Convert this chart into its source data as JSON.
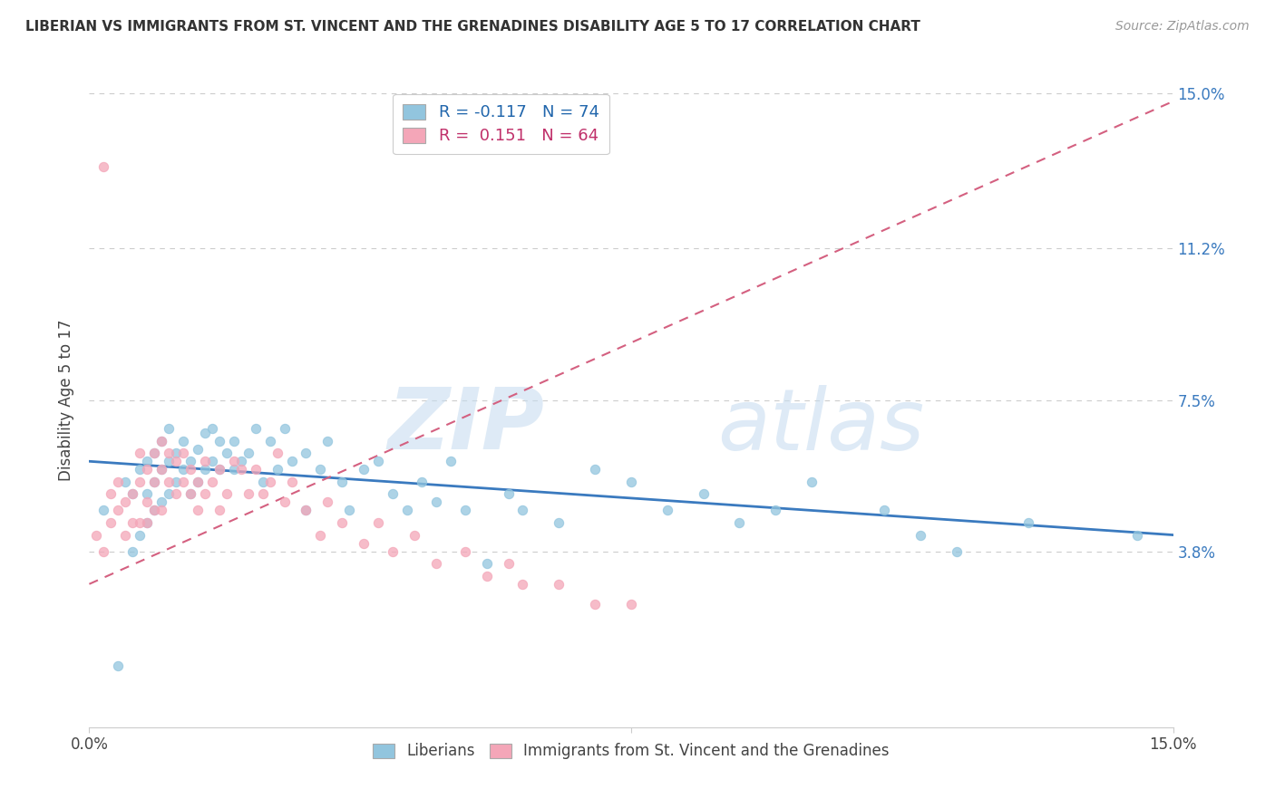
{
  "title": "LIBERIAN VS IMMIGRANTS FROM ST. VINCENT AND THE GRENADINES DISABILITY AGE 5 TO 17 CORRELATION CHART",
  "source": "Source: ZipAtlas.com",
  "ylabel": "Disability Age 5 to 17",
  "xlim": [
    0.0,
    0.15
  ],
  "ylim": [
    -0.005,
    0.155
  ],
  "yticks": [
    0.038,
    0.075,
    0.112,
    0.15
  ],
  "ytick_labels": [
    "3.8%",
    "7.5%",
    "11.2%",
    "15.0%"
  ],
  "xticks": [
    0.0,
    0.075,
    0.15
  ],
  "xtick_labels": [
    "0.0%",
    "",
    "15.0%"
  ],
  "legend1_R": "-0.117",
  "legend1_N": "74",
  "legend2_R": "0.151",
  "legend2_N": "64",
  "blue_color": "#92c5de",
  "pink_color": "#f4a6b8",
  "trend_blue": "#3a7abf",
  "trend_pink": "#d46080",
  "blue_trend_start_y": 0.06,
  "blue_trend_end_y": 0.042,
  "pink_trend_start_y": 0.03,
  "pink_trend_end_y": 0.148,
  "blue_x": [
    0.002,
    0.004,
    0.005,
    0.006,
    0.006,
    0.007,
    0.007,
    0.008,
    0.008,
    0.008,
    0.009,
    0.009,
    0.009,
    0.01,
    0.01,
    0.01,
    0.011,
    0.011,
    0.011,
    0.012,
    0.012,
    0.013,
    0.013,
    0.014,
    0.014,
    0.015,
    0.015,
    0.016,
    0.016,
    0.017,
    0.017,
    0.018,
    0.018,
    0.019,
    0.02,
    0.02,
    0.021,
    0.022,
    0.023,
    0.024,
    0.025,
    0.026,
    0.027,
    0.028,
    0.03,
    0.03,
    0.032,
    0.033,
    0.035,
    0.036,
    0.038,
    0.04,
    0.042,
    0.044,
    0.046,
    0.048,
    0.05,
    0.052,
    0.055,
    0.058,
    0.06,
    0.065,
    0.07,
    0.075,
    0.08,
    0.085,
    0.09,
    0.095,
    0.1,
    0.11,
    0.115,
    0.12,
    0.13,
    0.145
  ],
  "blue_y": [
    0.048,
    0.01,
    0.055,
    0.038,
    0.052,
    0.042,
    0.058,
    0.045,
    0.052,
    0.06,
    0.048,
    0.055,
    0.062,
    0.05,
    0.058,
    0.065,
    0.052,
    0.06,
    0.068,
    0.055,
    0.062,
    0.058,
    0.065,
    0.052,
    0.06,
    0.055,
    0.063,
    0.058,
    0.067,
    0.06,
    0.068,
    0.058,
    0.065,
    0.062,
    0.058,
    0.065,
    0.06,
    0.062,
    0.068,
    0.055,
    0.065,
    0.058,
    0.068,
    0.06,
    0.062,
    0.048,
    0.058,
    0.065,
    0.055,
    0.048,
    0.058,
    0.06,
    0.052,
    0.048,
    0.055,
    0.05,
    0.06,
    0.048,
    0.035,
    0.052,
    0.048,
    0.045,
    0.058,
    0.055,
    0.048,
    0.052,
    0.045,
    0.048,
    0.055,
    0.048,
    0.042,
    0.038,
    0.045,
    0.042
  ],
  "pink_x": [
    0.001,
    0.002,
    0.003,
    0.003,
    0.004,
    0.004,
    0.005,
    0.005,
    0.006,
    0.006,
    0.007,
    0.007,
    0.007,
    0.008,
    0.008,
    0.008,
    0.009,
    0.009,
    0.009,
    0.01,
    0.01,
    0.01,
    0.011,
    0.011,
    0.012,
    0.012,
    0.013,
    0.013,
    0.014,
    0.014,
    0.015,
    0.015,
    0.016,
    0.016,
    0.017,
    0.018,
    0.018,
    0.019,
    0.02,
    0.021,
    0.022,
    0.023,
    0.024,
    0.025,
    0.026,
    0.027,
    0.028,
    0.03,
    0.032,
    0.033,
    0.035,
    0.038,
    0.04,
    0.042,
    0.045,
    0.048,
    0.052,
    0.055,
    0.058,
    0.06,
    0.065,
    0.07,
    0.075,
    0.002
  ],
  "pink_y": [
    0.042,
    0.038,
    0.052,
    0.045,
    0.048,
    0.055,
    0.042,
    0.05,
    0.045,
    0.052,
    0.055,
    0.045,
    0.062,
    0.05,
    0.058,
    0.045,
    0.055,
    0.062,
    0.048,
    0.058,
    0.065,
    0.048,
    0.055,
    0.062,
    0.052,
    0.06,
    0.055,
    0.062,
    0.052,
    0.058,
    0.048,
    0.055,
    0.052,
    0.06,
    0.055,
    0.048,
    0.058,
    0.052,
    0.06,
    0.058,
    0.052,
    0.058,
    0.052,
    0.055,
    0.062,
    0.05,
    0.055,
    0.048,
    0.042,
    0.05,
    0.045,
    0.04,
    0.045,
    0.038,
    0.042,
    0.035,
    0.038,
    0.032,
    0.035,
    0.03,
    0.03,
    0.025,
    0.025,
    0.132
  ]
}
